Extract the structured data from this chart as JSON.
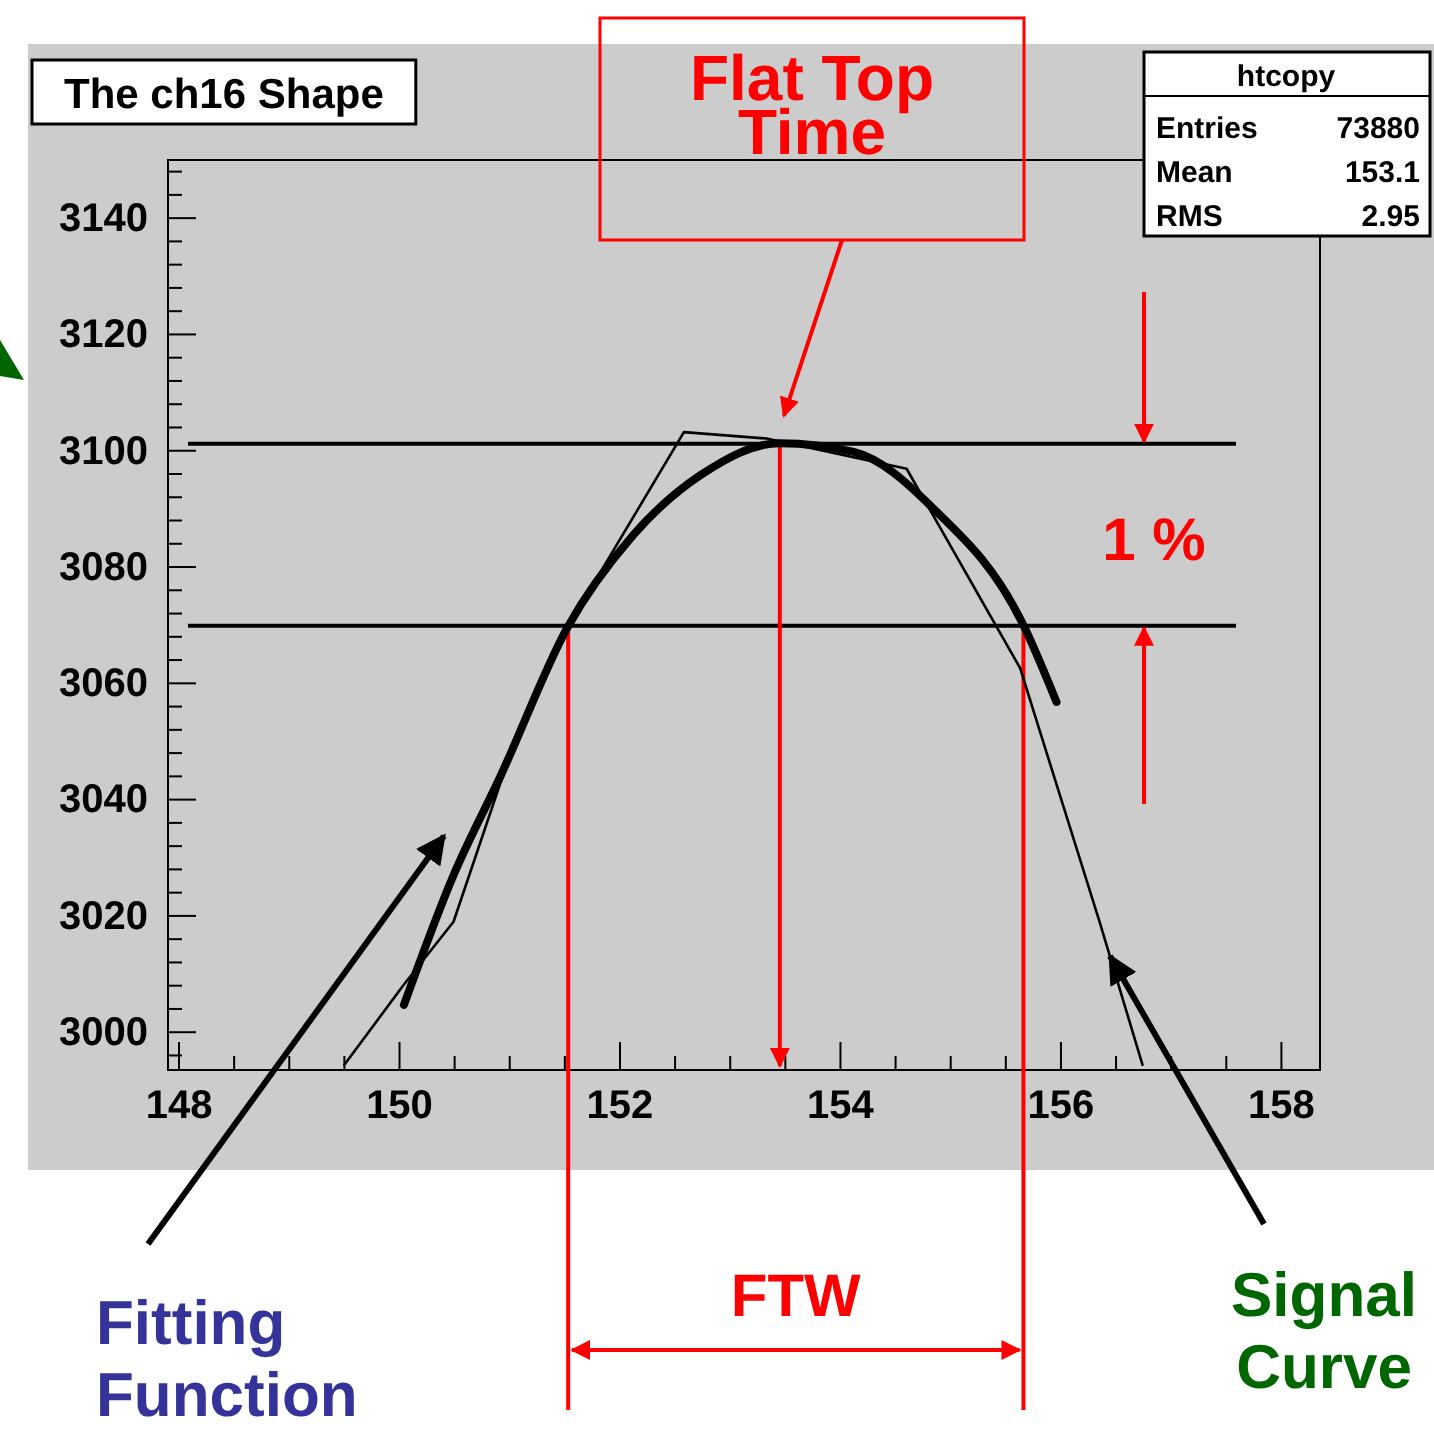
{
  "chart_data": {
    "type": "line",
    "title": "The ch16 Shape",
    "xlim": [
      147.9,
      158.35
    ],
    "ylim": [
      2993.5,
      3150
    ],
    "xticks": [
      148,
      {
        "value": 148.5,
        "label": null
      },
      {
        "value": 149,
        "label": null
      },
      {
        "value": 149.5,
        "label": null
      },
      150,
      {
        "value": 150.5,
        "label": null
      },
      {
        "value": 151,
        "label": null
      },
      {
        "value": 151.5,
        "label": null
      },
      152,
      {
        "value": 152.5,
        "label": null
      },
      {
        "value": 153,
        "label": null
      },
      {
        "value": 153.5,
        "label": null
      },
      154,
      {
        "value": 154.5,
        "label": null
      },
      {
        "value": 155,
        "label": null
      },
      {
        "value": 155.5,
        "label": null
      },
      156,
      {
        "value": 156.5,
        "label": null
      },
      {
        "value": 157,
        "label": null
      },
      {
        "value": 157.5,
        "label": null
      },
      158
    ],
    "yticks": [
      {
        "value": 2996,
        "label": null
      },
      3000,
      {
        "value": 3004,
        "label": null
      },
      {
        "value": 3008,
        "label": null
      },
      {
        "value": 3012,
        "label": null
      },
      {
        "value": 3016,
        "label": null
      },
      3020,
      {
        "value": 3024,
        "label": null
      },
      {
        "value": 3028,
        "label": null
      },
      {
        "value": 3032,
        "label": null
      },
      {
        "value": 3036,
        "label": null
      },
      3040,
      {
        "value": 3044,
        "label": null
      },
      {
        "value": 3048,
        "label": null
      },
      {
        "value": 3052,
        "label": null
      },
      {
        "value": 3056,
        "label": null
      },
      3060,
      {
        "value": 3064,
        "label": null
      },
      {
        "value": 3068,
        "label": null
      },
      {
        "value": 3072,
        "label": null
      },
      {
        "value": 3076,
        "label": null
      },
      3080,
      {
        "value": 3084,
        "label": null
      },
      {
        "value": 3088,
        "label": null
      },
      {
        "value": 3092,
        "label": null
      },
      {
        "value": 3096,
        "label": null
      },
      3100,
      {
        "value": 3104,
        "label": null
      },
      {
        "value": 3108,
        "label": null
      },
      {
        "value": 3112,
        "label": null
      },
      {
        "value": 3116,
        "label": null
      },
      3120,
      {
        "value": 3124,
        "label": null
      },
      {
        "value": 3128,
        "label": null
      },
      {
        "value": 3132,
        "label": null
      },
      {
        "value": 3136,
        "label": null
      },
      3140,
      {
        "value": 3144,
        "label": null
      },
      {
        "value": 3148,
        "label": null
      }
    ],
    "grid": false,
    "marker": "none",
    "series": [
      {
        "name": "Fitting Function",
        "color": "#000000",
        "x": [
          150.04,
          150.49,
          150.92,
          151.52,
          152.12,
          152.73,
          153.45,
          154.12,
          154.84,
          155.66,
          155.96
        ],
        "values": [
          3004.7,
          3027,
          3044.2,
          3069.5,
          3085.5,
          3095.8,
          3101.3,
          3099.8,
          3090.1,
          3070,
          3056.8
        ]
      },
      {
        "name": "Signal Curve",
        "color": "#000000",
        "x": [
          149.5,
          150.04,
          150.49,
          150.98,
          151.52,
          152.58,
          153.33,
          154.6,
          155.63,
          156.35,
          156.74
        ],
        "values": [
          2994.4,
          3008.2,
          3019,
          3046.5,
          3069.5,
          3103.2,
          3102.1,
          3096.9,
          3062.6,
          3019,
          2994.4
        ]
      }
    ],
    "ref_lines": [
      {
        "axis": "y",
        "value": 3101.2,
        "color": "#000000"
      },
      {
        "axis": "y",
        "value": 3069.9,
        "color": "#000000"
      },
      {
        "axis": "x",
        "value": 151.53,
        "color": "#ff0000"
      },
      {
        "axis": "x",
        "value": 155.66,
        "color": "#ff0000"
      },
      {
        "axis": "x",
        "value": 153.45,
        "color": "#ff0000"
      }
    ],
    "annotations": [
      "htcopy",
      "Entries",
      "73880",
      "Mean",
      "153.1",
      "RMS",
      "2.95",
      "Flat Top Time",
      "1 %",
      "FTW"
    ]
  }
}
